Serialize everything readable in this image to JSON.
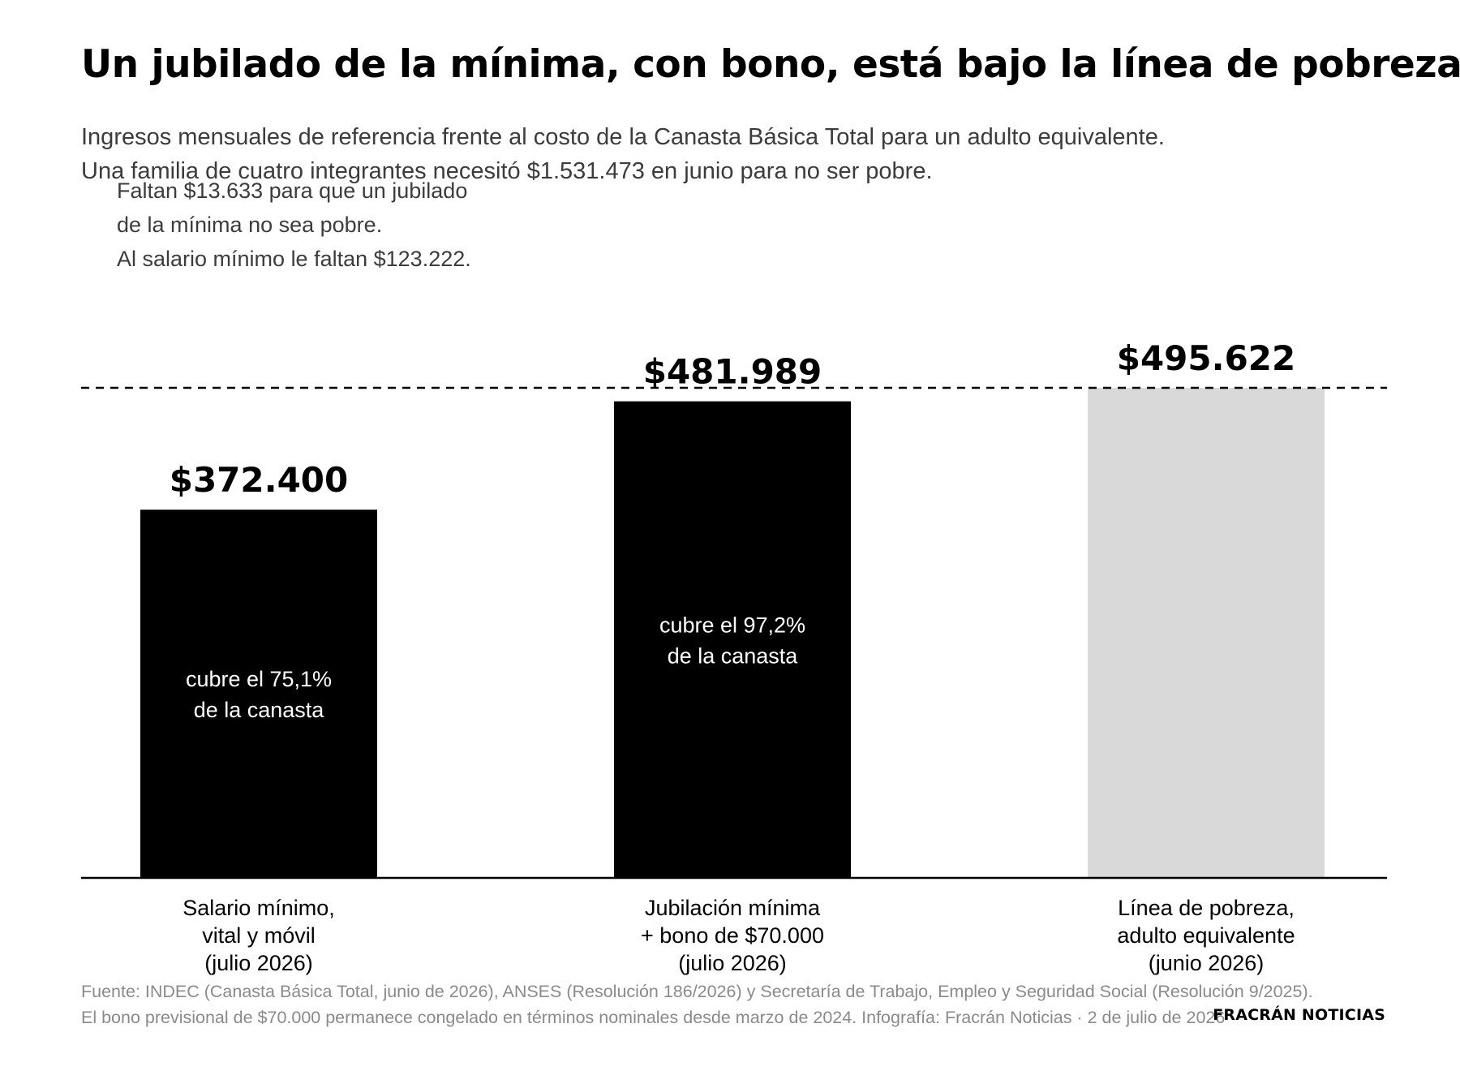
{
  "title": "Un jubilado de la mínima, con bono, está bajo la línea de pobreza",
  "subtitle_lines": [
    "Ingresos mensuales de referencia frente al costo de la Canasta Básica Total para un adulto equivalente.",
    "Una familia de cuatro integrantes necesitó $1.531.473 en junio para no ser pobre."
  ],
  "annotation_lines": [
    "Faltan $13.633 para que un jubilado",
    "de la mínima no sea pobre.",
    "Al salario mínimo le faltan $123.222."
  ],
  "chart_data": {
    "type": "bar",
    "categories": [
      [
        "Salario mínimo,",
        "vital y móvil",
        "(julio 2026)"
      ],
      [
        "Jubilación mínima",
        "+ bono de $70.000",
        "(julio 2026)"
      ],
      [
        "Línea de pobreza,",
        "adulto equivalente",
        "(junio 2026)"
      ]
    ],
    "values": [
      372400,
      481989,
      495622
    ],
    "value_labels": [
      "$372.400",
      "$481.989",
      "$495.622"
    ],
    "bar_annotations": [
      [
        "cubre el 75,1%",
        "de la canasta"
      ],
      [
        "cubre el 97,2%",
        "de la canasta"
      ],
      []
    ],
    "colors": [
      "#000000",
      "#000000",
      "#d9d9d9"
    ],
    "reference_line": {
      "value": 495622,
      "style": "dashed"
    },
    "ylim": [
      0,
      495622
    ],
    "grid": false,
    "legend": "none"
  },
  "footer": {
    "lines": [
      "Fuente: INDEC (Canasta Básica Total, junio de 2026), ANSES (Resolución 186/2026) y Secretaría de Trabajo, Empleo y Seguridad Social (Resolución 9/2025).",
      "El bono previsional de $70.000 permanece congelado en términos nominales desde marzo de 2024. Infografía: Fracrán Noticias · 2 de julio de 2026"
    ],
    "brand": "FRACRÁN NOTICIAS"
  }
}
